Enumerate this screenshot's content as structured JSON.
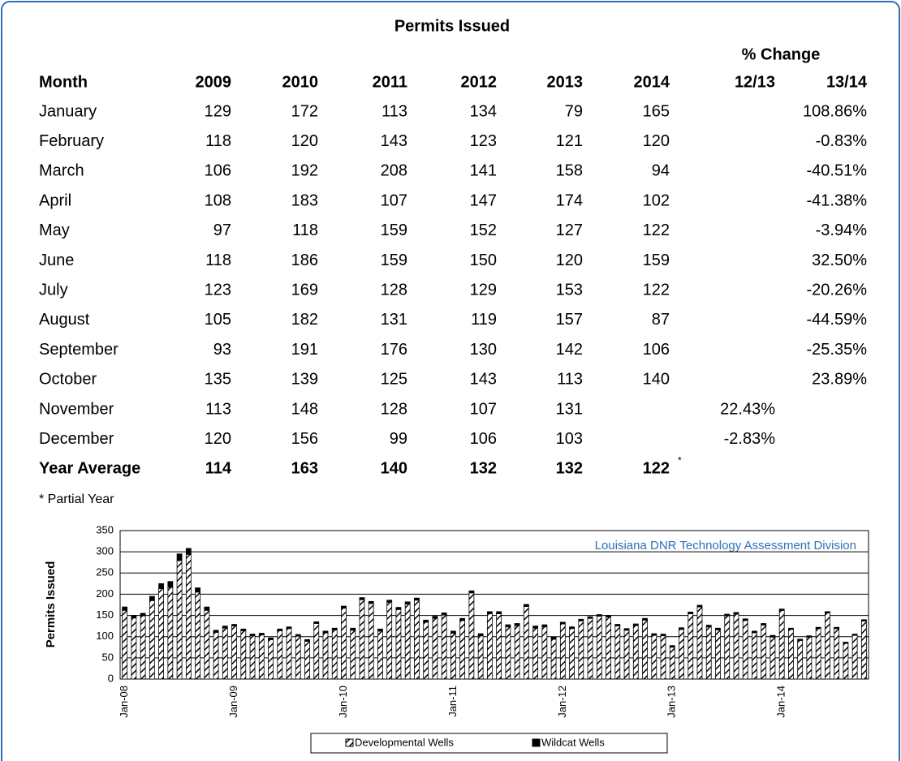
{
  "title": "Permits Issued",
  "change_header": "% Change",
  "table": {
    "columns": [
      "Month",
      "2009",
      "2010",
      "2011",
      "2012",
      "2013",
      "2014",
      "12/13",
      "13/14"
    ],
    "rows": [
      {
        "month": "January",
        "values": [
          129,
          172,
          113,
          134,
          79,
          165
        ],
        "change_13_14": "108.86%"
      },
      {
        "month": "February",
        "values": [
          118,
          120,
          143,
          123,
          121,
          120
        ],
        "change_13_14": "-0.83%"
      },
      {
        "month": "March",
        "values": [
          106,
          192,
          208,
          141,
          158,
          94
        ],
        "change_13_14": "-40.51%"
      },
      {
        "month": "April",
        "values": [
          108,
          183,
          107,
          147,
          174,
          102
        ],
        "change_13_14": "-41.38%"
      },
      {
        "month": "May",
        "values": [
          97,
          118,
          159,
          152,
          127,
          122
        ],
        "change_13_14": "-3.94%"
      },
      {
        "month": "June",
        "values": [
          118,
          186,
          159,
          150,
          120,
          159
        ],
        "change_13_14": "32.50%"
      },
      {
        "month": "July",
        "values": [
          123,
          169,
          128,
          129,
          153,
          122
        ],
        "change_13_14": "-20.26%"
      },
      {
        "month": "August",
        "values": [
          105,
          182,
          131,
          119,
          157,
          87
        ],
        "change_13_14": "-44.59%"
      },
      {
        "month": "September",
        "values": [
          93,
          191,
          176,
          130,
          142,
          106
        ],
        "change_13_14": "-25.35%"
      },
      {
        "month": "October",
        "values": [
          135,
          139,
          125,
          143,
          113,
          140
        ],
        "change_13_14": "23.89%"
      },
      {
        "month": "November",
        "values": [
          113,
          148,
          128,
          107,
          131
        ],
        "change_12_13": "22.43%"
      },
      {
        "month": "December",
        "values": [
          120,
          156,
          99,
          106,
          103
        ],
        "change_12_13": "-2.83%"
      }
    ],
    "average": {
      "month": "Year Average",
      "values": [
        114,
        163,
        140,
        132,
        132,
        122
      ],
      "mark": "*"
    }
  },
  "footnote": "* Partial Year",
  "chart_data": {
    "type": "stacked_bar",
    "ylabel": "Permits Issued",
    "annotation": "Louisiana DNR Technology Assessment Division",
    "ylim": [
      0,
      350
    ],
    "yticks": [
      0,
      50,
      100,
      150,
      200,
      250,
      300,
      350
    ],
    "grid": true,
    "categories": [
      "Jan-08",
      null,
      null,
      null,
      null,
      null,
      null,
      null,
      null,
      null,
      null,
      null,
      "Jan-09",
      null,
      null,
      null,
      null,
      null,
      null,
      null,
      null,
      null,
      null,
      null,
      "Jan-10",
      null,
      null,
      null,
      null,
      null,
      null,
      null,
      null,
      null,
      null,
      null,
      "Jan-11",
      null,
      null,
      null,
      null,
      null,
      null,
      null,
      null,
      null,
      null,
      null,
      "Jan-12",
      null,
      null,
      null,
      null,
      null,
      null,
      null,
      null,
      null,
      null,
      null,
      "Jan-13",
      null,
      null,
      null,
      null,
      null,
      null,
      null,
      null,
      null,
      null,
      null,
      "Jan-14",
      null,
      null,
      null,
      null,
      null,
      null,
      null,
      null,
      null
    ],
    "series": [
      {
        "name": "Developmental Wells",
        "color": "hatch",
        "values": [
          162,
          144,
          149,
          185,
          213,
          216,
          279,
          294,
          205,
          162,
          110,
          120,
          125,
          114,
          102,
          104,
          93,
          114,
          119,
          101,
          89,
          131,
          109,
          116,
          167,
          115,
          187,
          178,
          113,
          181,
          164,
          177,
          186,
          134,
          143,
          151,
          108,
          138,
          203,
          102,
          154,
          154,
          123,
          126,
          171,
          120,
          123,
          94,
          130,
          119,
          137,
          143,
          148,
          146,
          125,
          115,
          126,
          139,
          103,
          102,
          75,
          117,
          154,
          170,
          123,
          116,
          149,
          153,
          138,
          109,
          127,
          99,
          162,
          117,
          91,
          99,
          119,
          156,
          119,
          84,
          103,
          137
        ]
      },
      {
        "name": "Wildcat Wells",
        "color": "#000000",
        "values": [
          8,
          6,
          6,
          10,
          12,
          14,
          16,
          14,
          10,
          8,
          5,
          5,
          4,
          4,
          4,
          4,
          4,
          4,
          4,
          4,
          4,
          4,
          4,
          4,
          5,
          5,
          5,
          5,
          5,
          5,
          5,
          5,
          5,
          5,
          5,
          5,
          5,
          5,
          5,
          5,
          5,
          5,
          5,
          5,
          5,
          5,
          5,
          5,
          4,
          4,
          4,
          4,
          4,
          4,
          4,
          4,
          4,
          4,
          4,
          4,
          4,
          4,
          4,
          4,
          4,
          4,
          4,
          4,
          4,
          4,
          4,
          4,
          3,
          3,
          3,
          3,
          3,
          3,
          3,
          3,
          3,
          3
        ]
      }
    ]
  }
}
